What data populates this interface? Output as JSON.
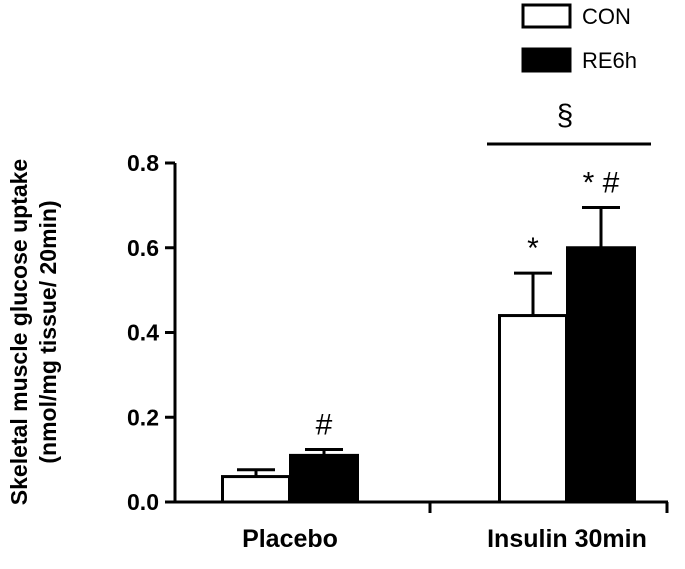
{
  "chart_data": {
    "type": "bar",
    "title": "",
    "xlabel": "",
    "ylabel_line1": "Skeletal muscle glucose uptake",
    "ylabel_line2": "(nmol/mg tissue/ 20min)",
    "ylim": [
      0,
      0.8
    ],
    "yticks": [
      "0.0",
      "0.2",
      "0.4",
      "0.6",
      "0.8"
    ],
    "categories": [
      "Placebo",
      "Insulin 30min"
    ],
    "series": [
      {
        "name": "CON",
        "fill": "#ffffff",
        "values": [
          0.06,
          0.44
        ],
        "errors": [
          0.016,
          0.1
        ]
      },
      {
        "name": "RE6h",
        "fill": "#000000",
        "values": [
          0.11,
          0.6
        ],
        "errors": [
          0.014,
          0.095
        ]
      }
    ],
    "bar_annotations": [
      {
        "series": 1,
        "category": 0,
        "text": "#"
      },
      {
        "series": 0,
        "category": 1,
        "text": "*"
      },
      {
        "series": 1,
        "category": 1,
        "text": "* #"
      }
    ],
    "group_annotation": {
      "category": 1,
      "text": "§"
    },
    "legend_position": "top-right",
    "colors": {
      "axis": "#000000",
      "bar_edge": "#000000"
    }
  }
}
